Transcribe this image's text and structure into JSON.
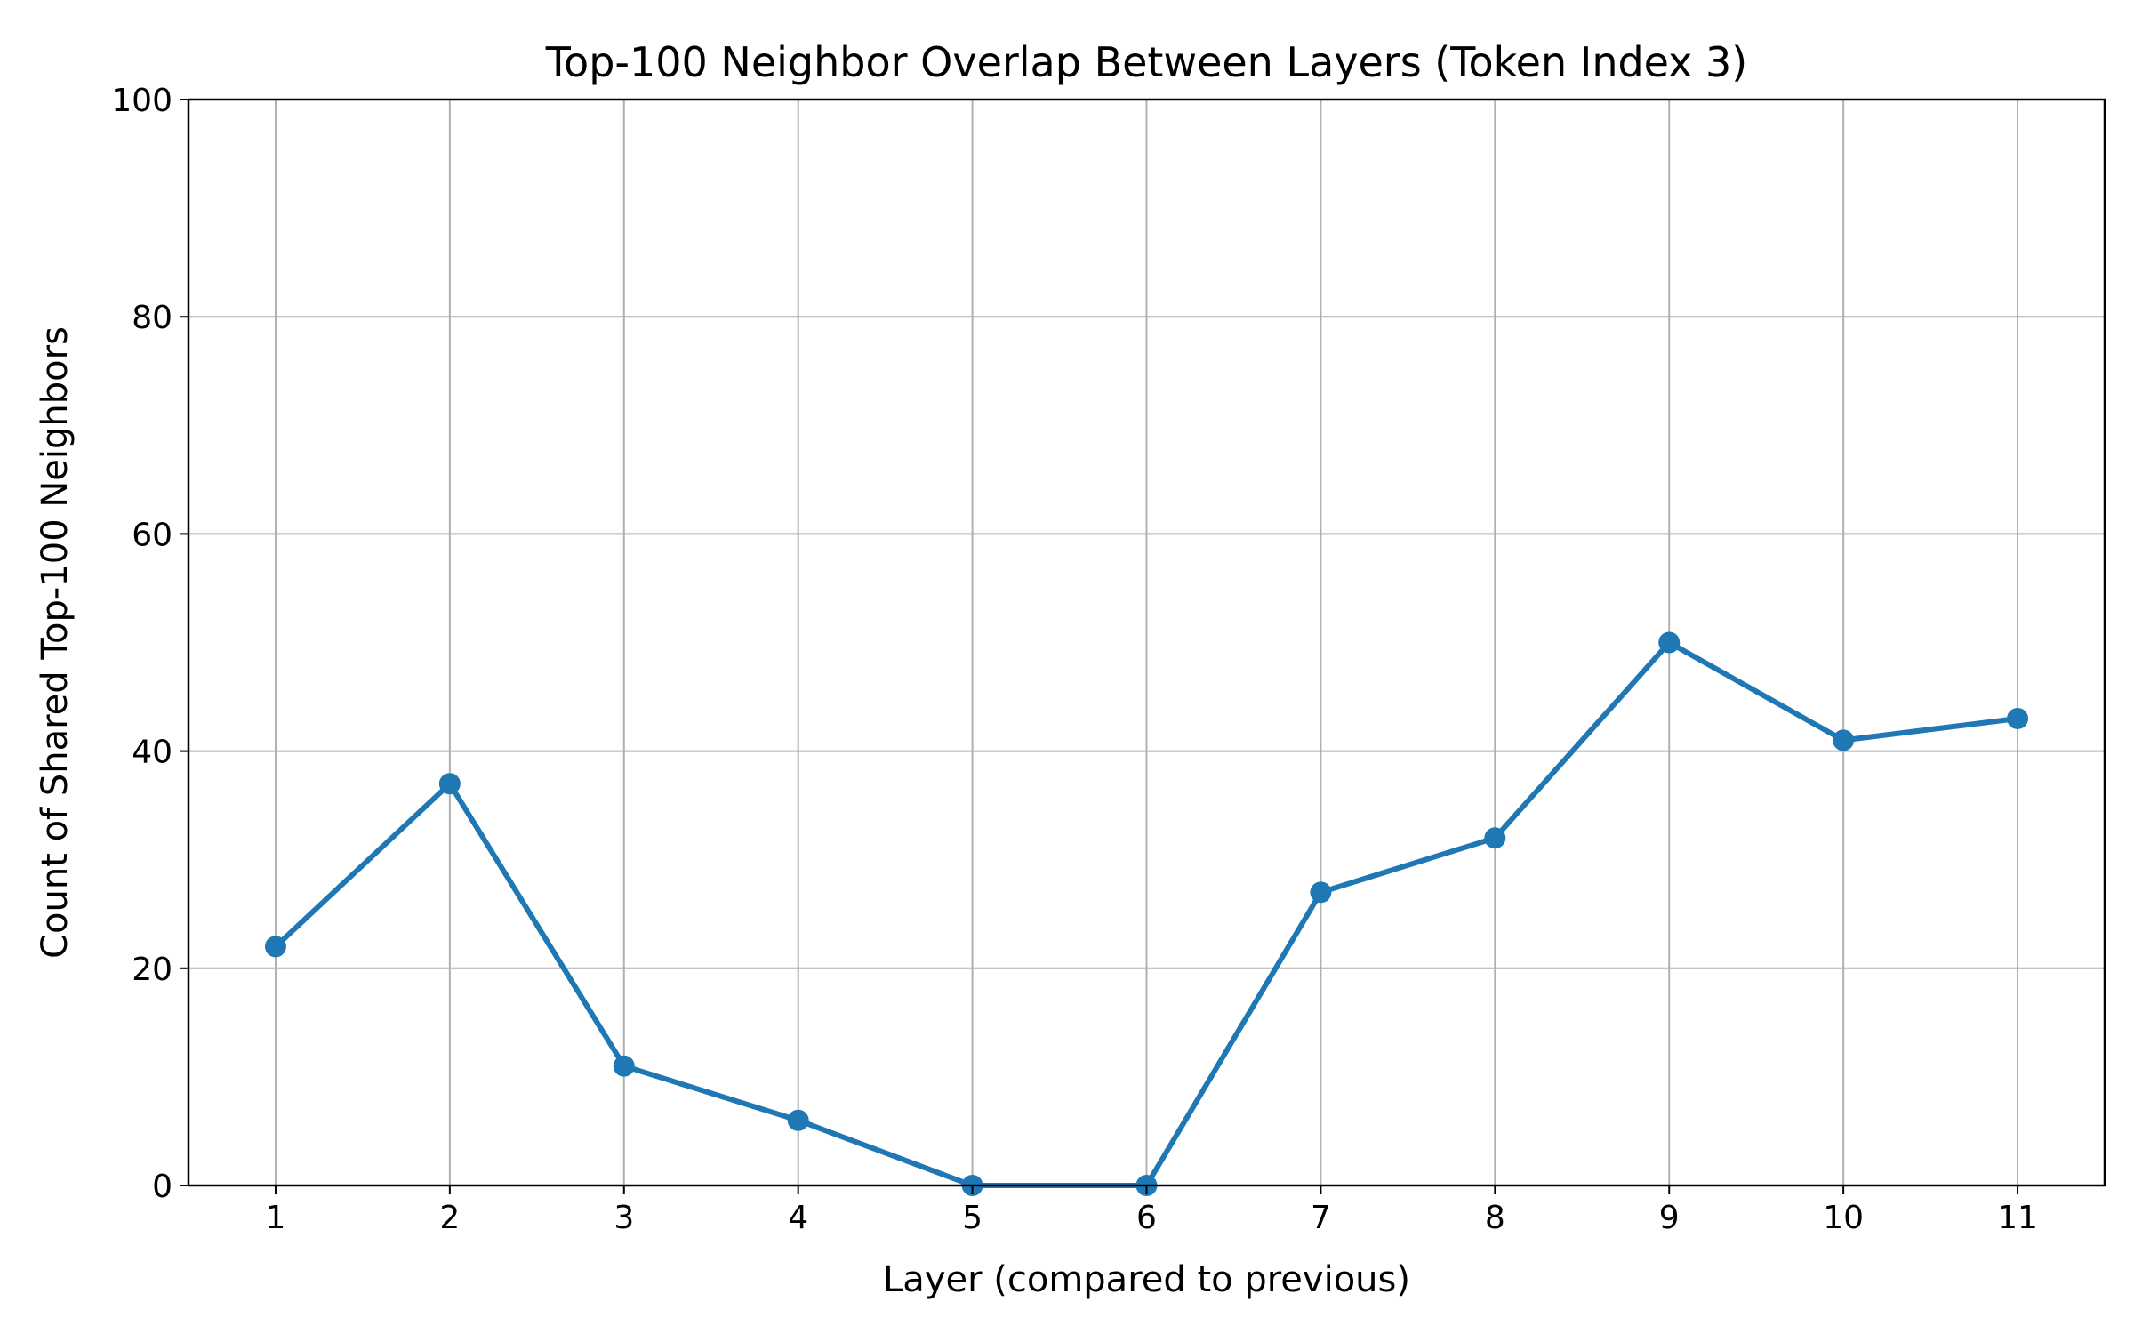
{
  "chart_data": {
    "type": "line",
    "title": "Top-100 Neighbor Overlap Between Layers (Token Index 3)",
    "xlabel": "Layer (compared to previous)",
    "ylabel": "Count of Shared Top-100 Neighbors",
    "x": [
      1,
      2,
      3,
      4,
      5,
      6,
      7,
      8,
      9,
      10,
      11
    ],
    "xlim": [
      0.5,
      11.5
    ],
    "ylim": [
      0,
      100
    ],
    "xticks": [
      1,
      2,
      3,
      4,
      5,
      6,
      7,
      8,
      9,
      10,
      11
    ],
    "yticks": [
      0,
      20,
      40,
      60,
      80,
      100
    ],
    "grid": true,
    "series": [
      {
        "values": [
          22,
          37,
          11,
          6,
          0,
          0,
          27,
          32,
          50,
          41,
          43
        ],
        "color": "#1f77b4",
        "marker": "circle"
      }
    ]
  }
}
